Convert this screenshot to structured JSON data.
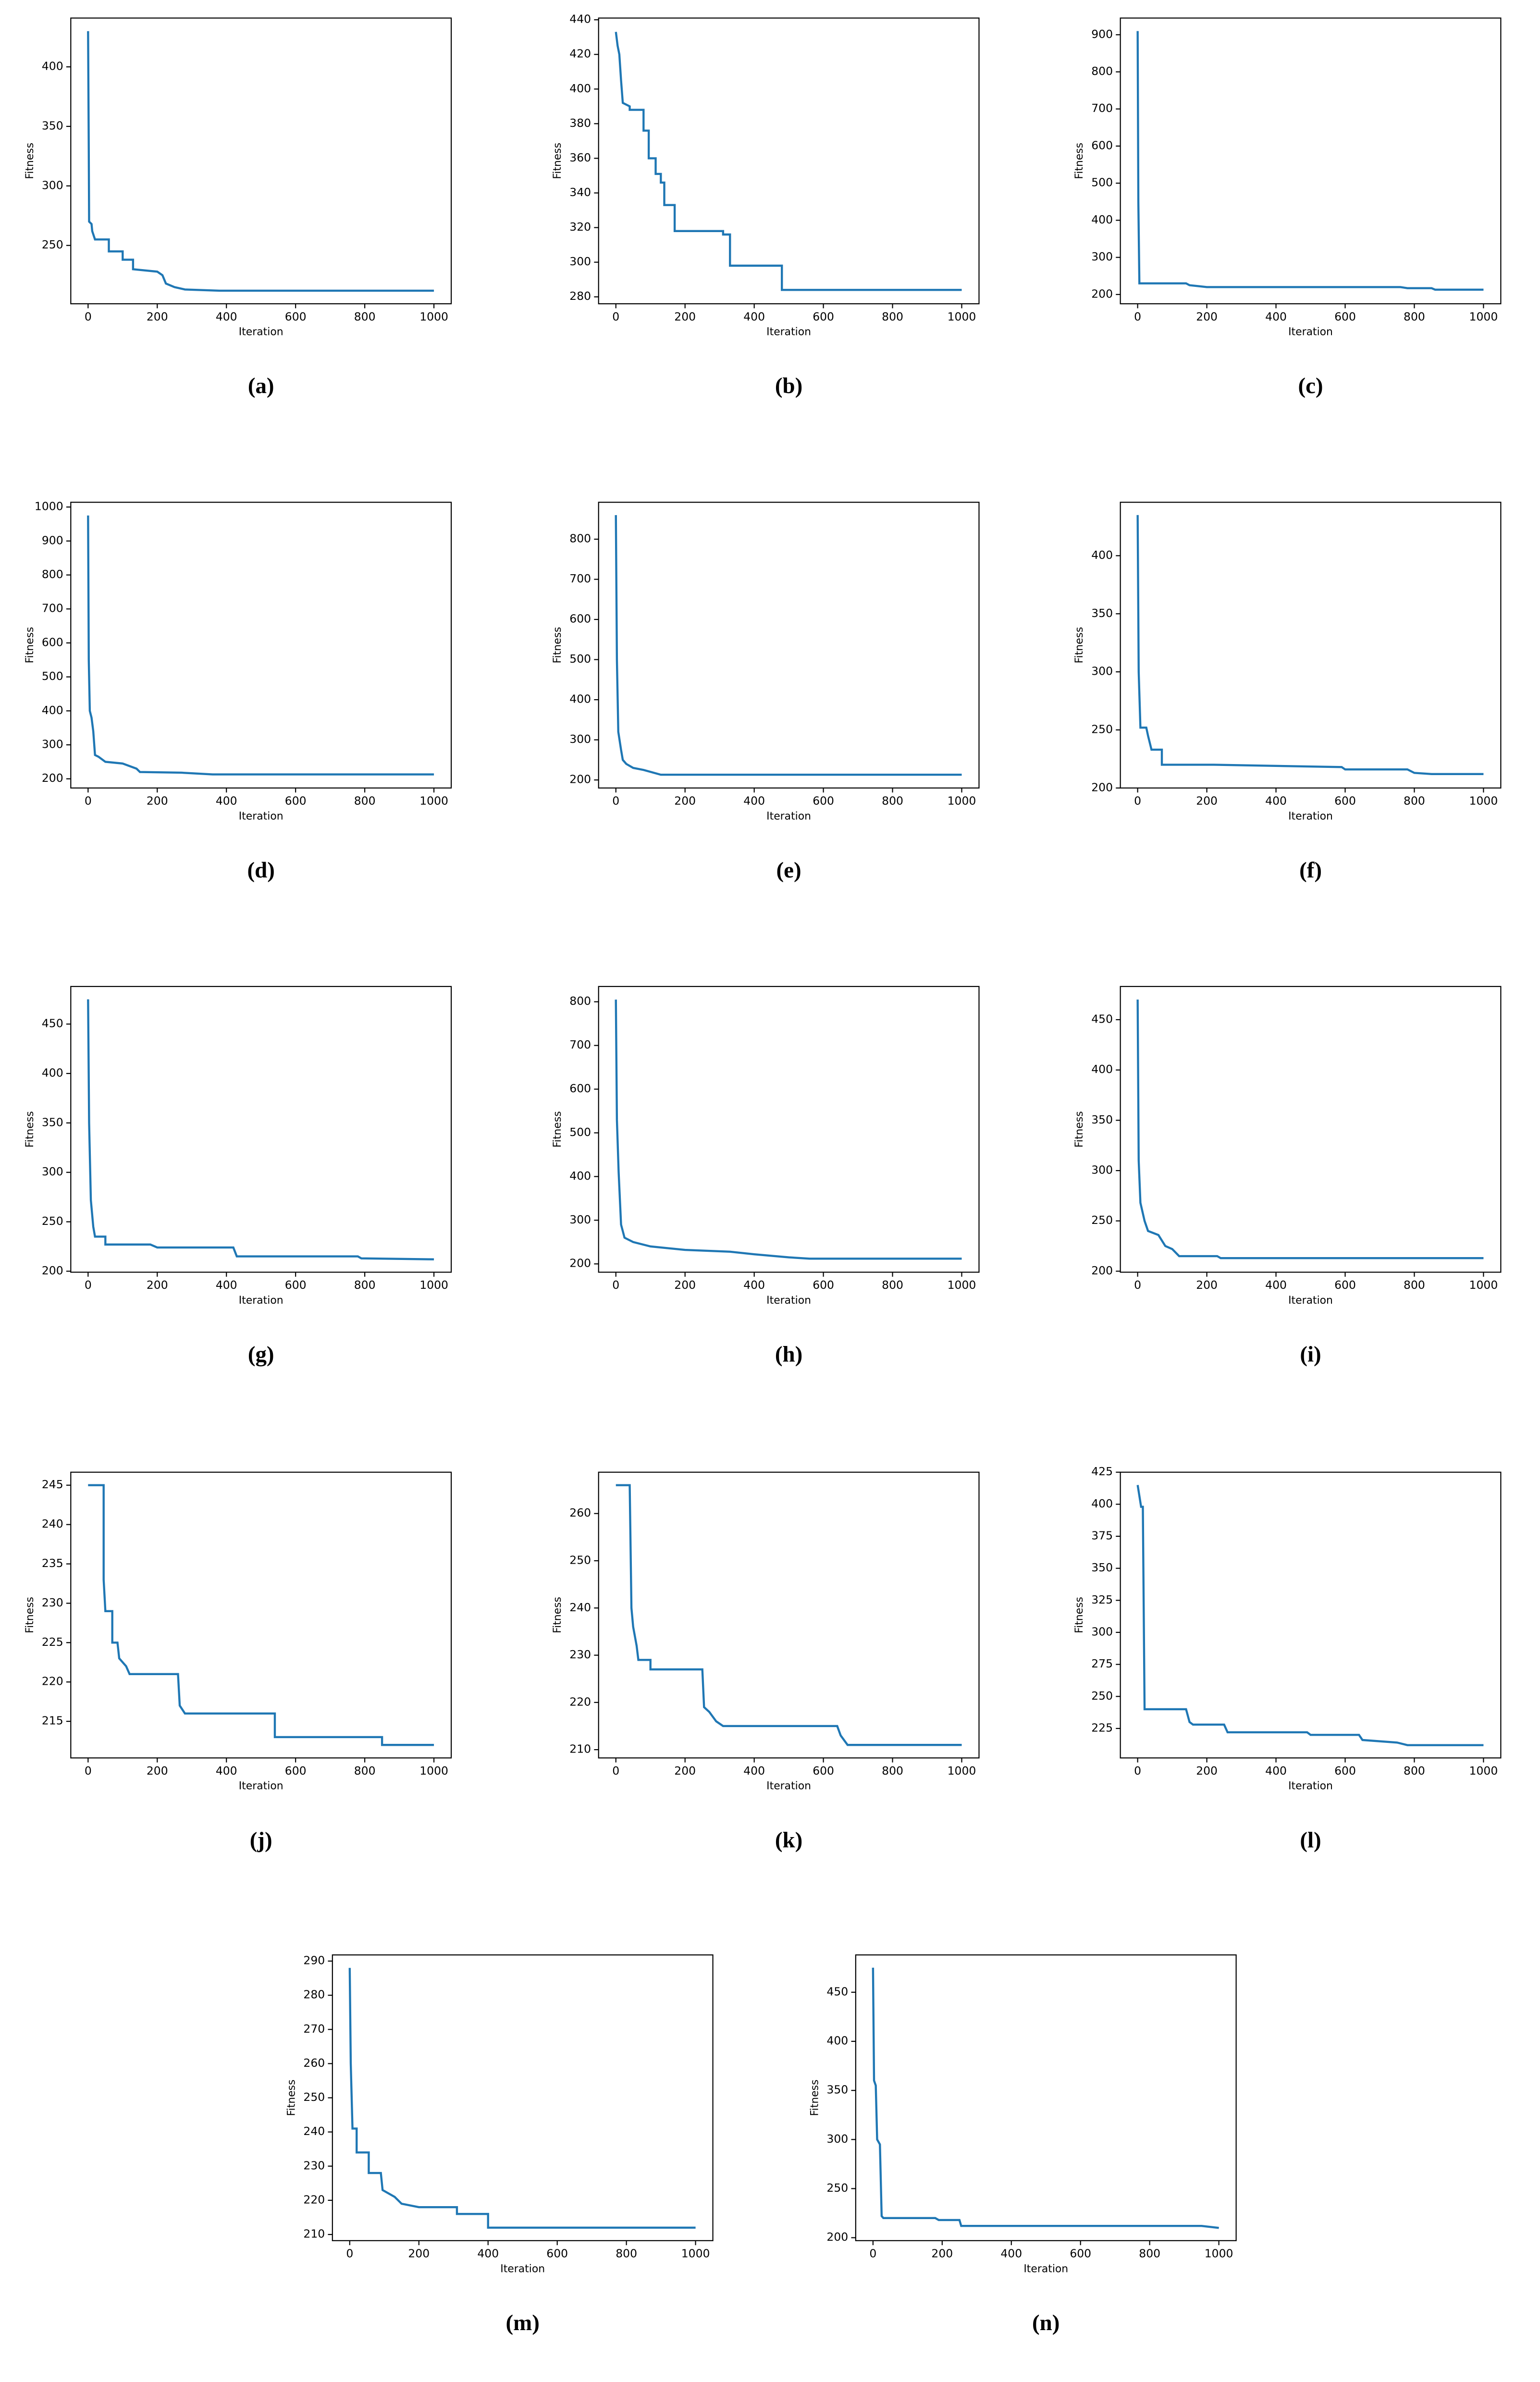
{
  "chart_data": [
    {
      "type": "line",
      "caption": "(a)",
      "xlabel": "Iteration",
      "ylabel": "Fitness",
      "color": "#1f77b4",
      "x": [
        0,
        2,
        3,
        10,
        12,
        20,
        60,
        60,
        100,
        100,
        130,
        130,
        200,
        215,
        225,
        250,
        280,
        380,
        1000
      ],
      "values": [
        430,
        330,
        270,
        268,
        262,
        255,
        255,
        245,
        245,
        238,
        238,
        230,
        228,
        225,
        218,
        215,
        213,
        212,
        212
      ],
      "xlim": [
        -50,
        1050
      ],
      "ylim": [
        201,
        441
      ],
      "xticks": [
        0,
        200,
        400,
        600,
        800,
        1000
      ],
      "yticks": [
        250,
        300,
        350,
        400
      ]
    },
    {
      "type": "line",
      "caption": "(b)",
      "xlabel": "Iteration",
      "ylabel": "Fitness",
      "color": "#1f77b4",
      "x": [
        0,
        5,
        10,
        15,
        20,
        40,
        40,
        80,
        80,
        95,
        95,
        115,
        115,
        130,
        130,
        140,
        140,
        170,
        170,
        310,
        310,
        330,
        330,
        480,
        480,
        1000
      ],
      "values": [
        433,
        425,
        420,
        405,
        392,
        390,
        388,
        388,
        376,
        376,
        360,
        360,
        351,
        351,
        346,
        346,
        333,
        333,
        318,
        318,
        316,
        316,
        298,
        298,
        284,
        284
      ],
      "xlim": [
        -50,
        1050
      ],
      "ylim": [
        276,
        441
      ],
      "xticks": [
        0,
        200,
        400,
        600,
        800,
        1000
      ],
      "yticks": [
        280,
        300,
        320,
        340,
        360,
        380,
        400,
        420,
        440
      ]
    },
    {
      "type": "line",
      "caption": "(c)",
      "xlabel": "Iteration",
      "ylabel": "Fitness",
      "color": "#1f77b4",
      "x": [
        0,
        2,
        5,
        140,
        150,
        180,
        200,
        760,
        780,
        850,
        860,
        1000
      ],
      "values": [
        910,
        450,
        230,
        230,
        225,
        222,
        220,
        220,
        217,
        217,
        213,
        213
      ],
      "xlim": [
        -50,
        1050
      ],
      "ylim": [
        175,
        945
      ],
      "xticks": [
        0,
        200,
        400,
        600,
        800,
        1000
      ],
      "yticks": [
        200,
        300,
        400,
        500,
        600,
        700,
        800,
        900
      ]
    },
    {
      "type": "line",
      "caption": "(d)",
      "xlabel": "Iteration",
      "ylabel": "Fitness",
      "color": "#1f77b4",
      "x": [
        0,
        2,
        5,
        10,
        15,
        20,
        30,
        50,
        100,
        140,
        150,
        270,
        360,
        1000
      ],
      "values": [
        975,
        550,
        400,
        380,
        340,
        270,
        265,
        250,
        245,
        230,
        220,
        218,
        213,
        213
      ],
      "xlim": [
        -50,
        1050
      ],
      "ylim": [
        173,
        1014
      ],
      "xticks": [
        0,
        200,
        400,
        600,
        800,
        1000
      ],
      "yticks": [
        200,
        300,
        400,
        500,
        600,
        700,
        800,
        900,
        1000
      ]
    },
    {
      "type": "line",
      "caption": "(e)",
      "xlabel": "Iteration",
      "ylabel": "Fitness",
      "color": "#1f77b4",
      "x": [
        0,
        3,
        7,
        15,
        20,
        30,
        50,
        80,
        130,
        1000
      ],
      "values": [
        860,
        500,
        320,
        275,
        250,
        240,
        230,
        225,
        213,
        213
      ],
      "xlim": [
        -50,
        1050
      ],
      "ylim": [
        180,
        892
      ],
      "xticks": [
        0,
        200,
        400,
        600,
        800,
        1000
      ],
      "yticks": [
        200,
        300,
        400,
        500,
        600,
        700,
        800
      ]
    },
    {
      "type": "line",
      "caption": "(f)",
      "xlabel": "Iteration",
      "ylabel": "Fitness",
      "color": "#1f77b4",
      "x": [
        0,
        3,
        8,
        25,
        30,
        40,
        70,
        70,
        220,
        590,
        600,
        780,
        800,
        850,
        1000
      ],
      "values": [
        435,
        300,
        252,
        252,
        245,
        233,
        233,
        220,
        220,
        218,
        216,
        216,
        213,
        212,
        212
      ],
      "xlim": [
        -50,
        1050
      ],
      "ylim": [
        200,
        446
      ],
      "xticks": [
        0,
        200,
        400,
        600,
        800,
        1000
      ],
      "yticks": [
        200,
        250,
        300,
        350,
        400
      ]
    },
    {
      "type": "line",
      "caption": "(g)",
      "xlabel": "Iteration",
      "ylabel": "Fitness",
      "color": "#1f77b4",
      "x": [
        0,
        3,
        8,
        15,
        20,
        50,
        50,
        180,
        200,
        420,
        430,
        780,
        790,
        1000
      ],
      "values": [
        475,
        350,
        272,
        245,
        235,
        235,
        227,
        227,
        224,
        224,
        215,
        215,
        213,
        212
      ],
      "xlim": [
        -50,
        1050
      ],
      "ylim": [
        199,
        488
      ],
      "xticks": [
        0,
        200,
        400,
        600,
        800,
        1000
      ],
      "yticks": [
        200,
        250,
        300,
        350,
        400,
        450
      ]
    },
    {
      "type": "line",
      "caption": "(h)",
      "xlabel": "Iteration",
      "ylabel": "Fitness",
      "color": "#1f77b4",
      "x": [
        0,
        3,
        8,
        15,
        25,
        50,
        100,
        200,
        330,
        400,
        500,
        560,
        1000
      ],
      "values": [
        805,
        530,
        410,
        290,
        260,
        250,
        240,
        232,
        228,
        222,
        215,
        212,
        212
      ],
      "xlim": [
        -50,
        1050
      ],
      "ylim": [
        181,
        835
      ],
      "xticks": [
        0,
        200,
        400,
        600,
        800,
        1000
      ],
      "yticks": [
        200,
        300,
        400,
        500,
        600,
        700,
        800
      ]
    },
    {
      "type": "line",
      "caption": "(i)",
      "xlabel": "Iteration",
      "ylabel": "Fitness",
      "color": "#1f77b4",
      "x": [
        0,
        3,
        8,
        20,
        30,
        60,
        80,
        100,
        120,
        230,
        240,
        1000
      ],
      "values": [
        470,
        310,
        268,
        250,
        240,
        236,
        225,
        222,
        215,
        215,
        213,
        213
      ],
      "xlim": [
        -50,
        1050
      ],
      "ylim": [
        199,
        483
      ],
      "xticks": [
        0,
        200,
        400,
        600,
        800,
        1000
      ],
      "yticks": [
        200,
        250,
        300,
        350,
        400,
        450
      ]
    },
    {
      "type": "line",
      "caption": "(j)",
      "xlabel": "Iteration",
      "ylabel": "Fitness",
      "color": "#1f77b4",
      "x": [
        0,
        45,
        45,
        50,
        70,
        70,
        85,
        90,
        110,
        120,
        260,
        265,
        280,
        540,
        540,
        850,
        850,
        1000
      ],
      "values": [
        245,
        245,
        233,
        229,
        229,
        225,
        225,
        223,
        222,
        221,
        221,
        217,
        216,
        216,
        213,
        213,
        212,
        212
      ],
      "xlim": [
        -50,
        1050
      ],
      "ylim": [
        210.35,
        246.65
      ],
      "xticks": [
        0,
        200,
        400,
        600,
        800,
        1000
      ],
      "yticks": [
        215,
        220,
        225,
        230,
        235,
        240,
        245
      ]
    },
    {
      "type": "line",
      "caption": "(k)",
      "xlabel": "Iteration",
      "ylabel": "Fitness",
      "color": "#1f77b4",
      "x": [
        0,
        40,
        45,
        50,
        60,
        65,
        100,
        100,
        250,
        255,
        270,
        290,
        310,
        640,
        650,
        670,
        1000
      ],
      "values": [
        266,
        266,
        240,
        236,
        232,
        229,
        229,
        227,
        227,
        219,
        218,
        216,
        215,
        215,
        213,
        211,
        211
      ],
      "xlim": [
        -50,
        1050
      ],
      "ylim": [
        208.25,
        268.75
      ],
      "xticks": [
        0,
        200,
        400,
        600,
        800,
        1000
      ],
      "yticks": [
        210,
        220,
        230,
        240,
        250,
        260
      ]
    },
    {
      "type": "line",
      "caption": "(l)",
      "xlabel": "Iteration",
      "ylabel": "Fitness",
      "color": "#1f77b4",
      "x": [
        0,
        10,
        15,
        20,
        140,
        150,
        160,
        250,
        260,
        490,
        500,
        640,
        650,
        750,
        780,
        1000
      ],
      "values": [
        415,
        398,
        398,
        240,
        240,
        230,
        228,
        228,
        222,
        222,
        220,
        220,
        216,
        214,
        212,
        212
      ],
      "xlim": [
        -50,
        1050
      ],
      "ylim": [
        202,
        425
      ],
      "xticks": [
        0,
        200,
        400,
        600,
        800,
        1000
      ],
      "yticks": [
        225,
        250,
        275,
        300,
        325,
        350,
        375,
        400,
        425
      ]
    },
    {
      "type": "line",
      "caption": "(m)",
      "xlabel": "Iteration",
      "ylabel": "Fitness",
      "color": "#1f77b4",
      "x": [
        0,
        3,
        8,
        20,
        20,
        55,
        55,
        90,
        95,
        130,
        150,
        200,
        310,
        310,
        400,
        400,
        1000
      ],
      "values": [
        288,
        260,
        241,
        241,
        234,
        234,
        228,
        228,
        223,
        221,
        219,
        218,
        218,
        216,
        216,
        212,
        212
      ],
      "xlim": [
        -50,
        1050
      ],
      "ylim": [
        208.2,
        291.8
      ],
      "xticks": [
        0,
        200,
        400,
        600,
        800,
        1000
      ],
      "yticks": [
        210,
        220,
        230,
        240,
        250,
        260,
        270,
        280,
        290
      ]
    },
    {
      "type": "line",
      "caption": "(n)",
      "xlabel": "Iteration",
      "ylabel": "Fitness",
      "color": "#1f77b4",
      "x": [
        0,
        3,
        8,
        12,
        20,
        25,
        30,
        180,
        190,
        250,
        255,
        950,
        1000
      ],
      "values": [
        475,
        360,
        355,
        300,
        295,
        222,
        220,
        220,
        218,
        218,
        212,
        212,
        210
      ],
      "xlim": [
        -50,
        1050
      ],
      "ylim": [
        197,
        488
      ],
      "xticks": [
        0,
        200,
        400,
        600,
        800,
        1000
      ],
      "yticks": [
        200,
        250,
        300,
        350,
        400,
        450
      ]
    }
  ]
}
